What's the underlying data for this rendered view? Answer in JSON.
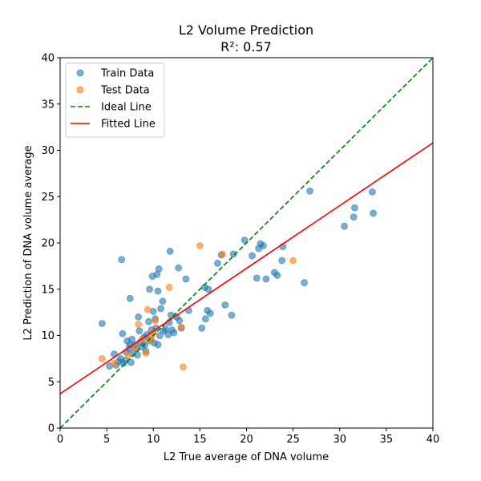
{
  "chart_data": {
    "type": "scatter",
    "title": "L2 Volume Prediction",
    "subtitle": "R²: 0.57",
    "xlabel": "L2 True average of DNA volume",
    "ylabel": "L2 Prediction of DNA volume average",
    "xlim": [
      0,
      40
    ],
    "ylim": [
      0,
      40
    ],
    "xticks": [
      "0",
      "5",
      "10",
      "15",
      "20",
      "25",
      "30",
      "35",
      "40"
    ],
    "yticks": [
      "0",
      "5",
      "10",
      "15",
      "20",
      "25",
      "30",
      "35",
      "40"
    ],
    "grid": false,
    "legend_position": "top-left",
    "series": [
      {
        "name": "Train Data",
        "color": "#1f77b4",
        "points": [
          [
            4.5,
            11.3
          ],
          [
            5.3,
            6.7
          ],
          [
            5.8,
            8.0
          ],
          [
            6.0,
            6.8
          ],
          [
            6.3,
            7.2
          ],
          [
            6.5,
            7.5
          ],
          [
            6.6,
            18.2
          ],
          [
            6.7,
            10.2
          ],
          [
            6.8,
            7.0
          ],
          [
            7.0,
            7.3
          ],
          [
            7.1,
            8.2
          ],
          [
            7.2,
            9.4
          ],
          [
            7.4,
            8.6
          ],
          [
            7.5,
            14.0
          ],
          [
            7.5,
            9.0
          ],
          [
            7.6,
            7.1
          ],
          [
            7.7,
            9.6
          ],
          [
            7.8,
            8.1
          ],
          [
            8.0,
            9.0
          ],
          [
            8.2,
            8.6
          ],
          [
            8.3,
            7.9
          ],
          [
            8.4,
            12.0
          ],
          [
            8.5,
            10.5
          ],
          [
            8.6,
            9.3
          ],
          [
            8.8,
            8.8
          ],
          [
            9.0,
            9.8
          ],
          [
            9.1,
            9.0
          ],
          [
            9.2,
            8.3
          ],
          [
            9.3,
            10.1
          ],
          [
            9.5,
            11.5
          ],
          [
            9.6,
            15.0
          ],
          [
            9.7,
            9.5
          ],
          [
            9.8,
            10.6
          ],
          [
            9.9,
            16.4
          ],
          [
            10.0,
            12.6
          ],
          [
            10.1,
            9.2
          ],
          [
            10.2,
            11.8
          ],
          [
            10.3,
            10.8
          ],
          [
            10.4,
            16.6
          ],
          [
            10.5,
            9.0
          ],
          [
            10.5,
            14.8
          ],
          [
            10.6,
            17.2
          ],
          [
            10.7,
            10.0
          ],
          [
            10.8,
            12.9
          ],
          [
            11.0,
            13.7
          ],
          [
            11.1,
            10.5
          ],
          [
            11.3,
            10.7
          ],
          [
            11.6,
            10.1
          ],
          [
            11.7,
            11.4
          ],
          [
            11.8,
            19.1
          ],
          [
            11.9,
            12.2
          ],
          [
            12.0,
            10.6
          ],
          [
            12.2,
            10.3
          ],
          [
            12.5,
            12.0
          ],
          [
            12.7,
            17.3
          ],
          [
            12.8,
            11.6
          ],
          [
            13.0,
            10.8
          ],
          [
            13.5,
            16.1
          ],
          [
            13.8,
            12.7
          ],
          [
            15.2,
            10.8
          ],
          [
            15.5,
            15.2
          ],
          [
            15.6,
            11.8
          ],
          [
            15.8,
            12.7
          ],
          [
            15.9,
            15.0
          ],
          [
            16.1,
            12.4
          ],
          [
            16.9,
            17.8
          ],
          [
            17.3,
            18.7
          ],
          [
            17.7,
            13.3
          ],
          [
            18.4,
            12.2
          ],
          [
            18.6,
            18.8
          ],
          [
            19.8,
            20.3
          ],
          [
            20.6,
            18.6
          ],
          [
            21.1,
            16.2
          ],
          [
            21.3,
            19.4
          ],
          [
            21.5,
            19.9
          ],
          [
            21.8,
            19.7
          ],
          [
            22.1,
            16.1
          ],
          [
            23.0,
            16.8
          ],
          [
            23.3,
            16.5
          ],
          [
            23.8,
            18.1
          ],
          [
            23.9,
            19.6
          ],
          [
            26.2,
            15.7
          ],
          [
            26.8,
            25.6
          ],
          [
            30.5,
            21.8
          ],
          [
            31.5,
            22.8
          ],
          [
            31.6,
            23.8
          ],
          [
            33.5,
            25.5
          ],
          [
            33.6,
            23.2
          ]
        ]
      },
      {
        "name": "Test Data",
        "color": "#ff7f0e",
        "points": [
          [
            4.5,
            7.5
          ],
          [
            5.8,
            7.0
          ],
          [
            7.3,
            7.9
          ],
          [
            8.0,
            8.7
          ],
          [
            8.4,
            11.2
          ],
          [
            8.8,
            9.6
          ],
          [
            9.2,
            8.1
          ],
          [
            9.4,
            12.8
          ],
          [
            9.6,
            9.4
          ],
          [
            9.8,
            9.9
          ],
          [
            10.0,
            10.3
          ],
          [
            10.2,
            11.6
          ],
          [
            11.7,
            15.2
          ],
          [
            13.0,
            10.9
          ],
          [
            13.2,
            6.6
          ],
          [
            15.0,
            19.7
          ],
          [
            17.4,
            18.8
          ],
          [
            25.0,
            18.1
          ]
        ]
      },
      {
        "name": "Ideal Line",
        "color": "#008000",
        "line": [
          [
            0,
            0
          ],
          [
            40,
            40
          ]
        ],
        "style": "dashed"
      },
      {
        "name": "Fitted Line",
        "color": "#ff0000",
        "line": [
          [
            0,
            3.7
          ],
          [
            40,
            30.8
          ]
        ],
        "style": "solid"
      }
    ]
  }
}
